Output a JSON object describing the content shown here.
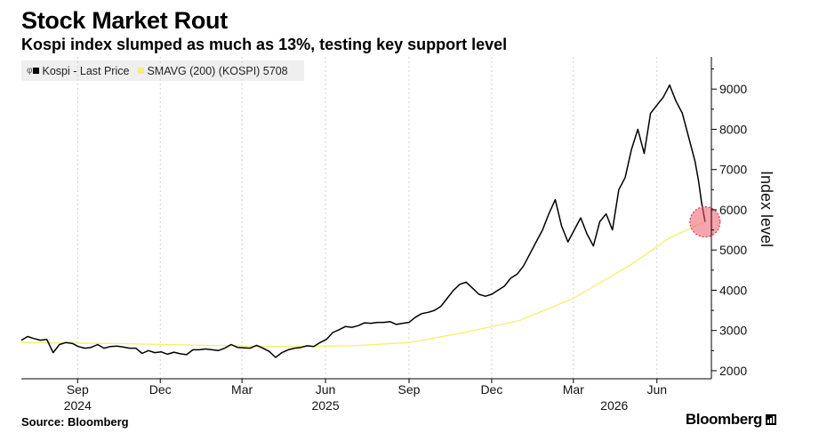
{
  "header": {
    "title": "Stock Market Rout",
    "subtitle": "Kospi index slumped as much as 13%, testing key support level"
  },
  "legend": {
    "items": [
      {
        "glyph": "φ",
        "label": "Kospi - Last Price",
        "color": "#000000"
      },
      {
        "glyph": "",
        "label": "SMAVG (200) (KOSPI) 5708",
        "color": "#f5ef6b"
      }
    ]
  },
  "footer": {
    "source": "Source: Bloomberg",
    "brand": "Bloomberg"
  },
  "chart_data": {
    "type": "line",
    "ylabel": "Index level",
    "y_axis_position": "right",
    "ylim": [
      1800,
      9800
    ],
    "y_ticks": [
      2000,
      3000,
      4000,
      5000,
      6000,
      7000,
      8000,
      9000
    ],
    "x_start": "2024-07-01",
    "x_end": "2026-07-31",
    "x_ticks": [
      {
        "date": "2024-09-01",
        "label": "Sep"
      },
      {
        "date": "2024-12-01",
        "label": "Dec"
      },
      {
        "date": "2025-03-01",
        "label": "Mar"
      },
      {
        "date": "2025-06-01",
        "label": "Jun"
      },
      {
        "date": "2025-09-01",
        "label": "Sep"
      },
      {
        "date": "2025-12-01",
        "label": "Dec"
      },
      {
        "date": "2026-03-01",
        "label": "Mar"
      },
      {
        "date": "2026-06-01",
        "label": "Jun"
      }
    ],
    "year_labels": [
      {
        "date": "2024-09-01",
        "label": "2024"
      },
      {
        "date": "2025-06-01",
        "label": "2025"
      },
      {
        "date": "2026-04-15",
        "label": "2026"
      }
    ],
    "grid": "vertical-dashed",
    "highlight": {
      "date": "2026-07-24",
      "value": 5700
    },
    "series": [
      {
        "name": "Kospi - Last Price",
        "color": "#000000",
        "points": [
          [
            "2024-07-01",
            2760
          ],
          [
            "2024-07-08",
            2850
          ],
          [
            "2024-07-15",
            2800
          ],
          [
            "2024-07-22",
            2760
          ],
          [
            "2024-07-29",
            2780
          ],
          [
            "2024-08-05",
            2450
          ],
          [
            "2024-08-12",
            2650
          ],
          [
            "2024-08-19",
            2700
          ],
          [
            "2024-08-26",
            2680
          ],
          [
            "2024-09-02",
            2600
          ],
          [
            "2024-09-09",
            2560
          ],
          [
            "2024-09-16",
            2580
          ],
          [
            "2024-09-23",
            2650
          ],
          [
            "2024-09-30",
            2560
          ],
          [
            "2024-10-07",
            2600
          ],
          [
            "2024-10-14",
            2610
          ],
          [
            "2024-10-21",
            2590
          ],
          [
            "2024-10-28",
            2560
          ],
          [
            "2024-11-04",
            2560
          ],
          [
            "2024-11-11",
            2430
          ],
          [
            "2024-11-18",
            2500
          ],
          [
            "2024-11-25",
            2450
          ],
          [
            "2024-12-02",
            2470
          ],
          [
            "2024-12-09",
            2410
          ],
          [
            "2024-12-16",
            2460
          ],
          [
            "2024-12-23",
            2420
          ],
          [
            "2024-12-30",
            2400
          ],
          [
            "2025-01-06",
            2520
          ],
          [
            "2025-01-13",
            2520
          ],
          [
            "2025-01-20",
            2540
          ],
          [
            "2025-01-27",
            2520
          ],
          [
            "2025-02-03",
            2500
          ],
          [
            "2025-02-10",
            2560
          ],
          [
            "2025-02-17",
            2650
          ],
          [
            "2025-02-24",
            2580
          ],
          [
            "2025-03-03",
            2570
          ],
          [
            "2025-03-10",
            2560
          ],
          [
            "2025-03-17",
            2630
          ],
          [
            "2025-03-24",
            2560
          ],
          [
            "2025-03-31",
            2480
          ],
          [
            "2025-04-07",
            2330
          ],
          [
            "2025-04-14",
            2450
          ],
          [
            "2025-04-21",
            2520
          ],
          [
            "2025-04-28",
            2560
          ],
          [
            "2025-05-05",
            2580
          ],
          [
            "2025-05-12",
            2620
          ],
          [
            "2025-05-19",
            2600
          ],
          [
            "2025-05-26",
            2700
          ],
          [
            "2025-06-02",
            2780
          ],
          [
            "2025-06-09",
            2950
          ],
          [
            "2025-06-16",
            3020
          ],
          [
            "2025-06-23",
            3100
          ],
          [
            "2025-06-30",
            3080
          ],
          [
            "2025-07-07",
            3120
          ],
          [
            "2025-07-14",
            3190
          ],
          [
            "2025-07-21",
            3180
          ],
          [
            "2025-07-28",
            3200
          ],
          [
            "2025-08-04",
            3200
          ],
          [
            "2025-08-11",
            3220
          ],
          [
            "2025-08-18",
            3150
          ],
          [
            "2025-08-25",
            3180
          ],
          [
            "2025-09-01",
            3200
          ],
          [
            "2025-09-08",
            3330
          ],
          [
            "2025-09-15",
            3420
          ],
          [
            "2025-09-22",
            3450
          ],
          [
            "2025-09-29",
            3500
          ],
          [
            "2025-10-06",
            3600
          ],
          [
            "2025-10-13",
            3800
          ],
          [
            "2025-10-20",
            4000
          ],
          [
            "2025-10-27",
            4150
          ],
          [
            "2025-11-03",
            4200
          ],
          [
            "2025-11-10",
            4050
          ],
          [
            "2025-11-17",
            3900
          ],
          [
            "2025-11-24",
            3850
          ],
          [
            "2025-12-01",
            3900
          ],
          [
            "2025-12-08",
            4000
          ],
          [
            "2025-12-15",
            4100
          ],
          [
            "2025-12-22",
            4300
          ],
          [
            "2025-12-29",
            4400
          ],
          [
            "2026-01-05",
            4600
          ],
          [
            "2026-01-12",
            4900
          ],
          [
            "2026-01-19",
            5200
          ],
          [
            "2026-01-26",
            5500
          ],
          [
            "2026-02-02",
            5900
          ],
          [
            "2026-02-09",
            6250
          ],
          [
            "2026-02-16",
            5600
          ],
          [
            "2026-02-23",
            5200
          ],
          [
            "2026-03-02",
            5500
          ],
          [
            "2026-03-09",
            5800
          ],
          [
            "2026-03-16",
            5400
          ],
          [
            "2026-03-23",
            5100
          ],
          [
            "2026-03-30",
            5700
          ],
          [
            "2026-04-06",
            5900
          ],
          [
            "2026-04-13",
            5500
          ],
          [
            "2026-04-20",
            6500
          ],
          [
            "2026-04-27",
            6800
          ],
          [
            "2026-05-04",
            7500
          ],
          [
            "2026-05-11",
            8000
          ],
          [
            "2026-05-18",
            7400
          ],
          [
            "2026-05-25",
            8400
          ],
          [
            "2026-06-01",
            8600
          ],
          [
            "2026-06-08",
            8800
          ],
          [
            "2026-06-15",
            9100
          ],
          [
            "2026-06-22",
            8700
          ],
          [
            "2026-06-29",
            8400
          ],
          [
            "2026-07-06",
            7800
          ],
          [
            "2026-07-13",
            7200
          ],
          [
            "2026-07-17",
            6700
          ],
          [
            "2026-07-20",
            6200
          ],
          [
            "2026-07-24",
            5700
          ]
        ]
      },
      {
        "name": "SMAVG (200) (KOSPI) 5708",
        "color": "#f5ef6b",
        "points": [
          [
            "2024-07-01",
            2700
          ],
          [
            "2024-10-01",
            2680
          ],
          [
            "2025-01-01",
            2640
          ],
          [
            "2025-04-01",
            2600
          ],
          [
            "2025-07-01",
            2620
          ],
          [
            "2025-09-01",
            2700
          ],
          [
            "2025-11-01",
            2950
          ],
          [
            "2026-01-01",
            3250
          ],
          [
            "2026-03-01",
            3800
          ],
          [
            "2026-05-01",
            4600
          ],
          [
            "2026-06-15",
            5300
          ],
          [
            "2026-07-24",
            5708
          ]
        ]
      }
    ]
  }
}
